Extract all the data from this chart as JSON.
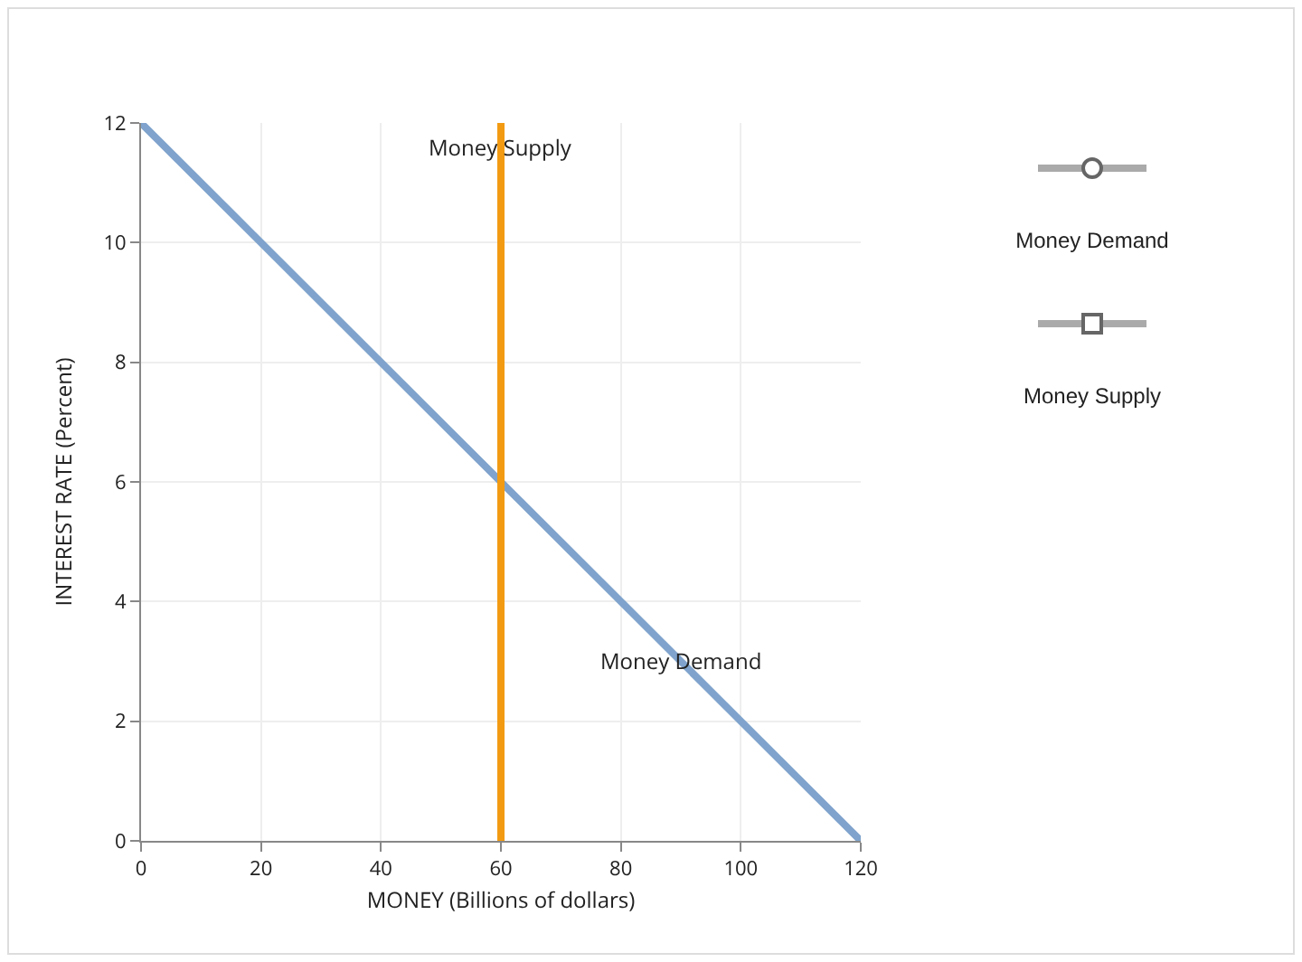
{
  "chart_data": {
    "type": "line",
    "xlabel": "MONEY (Billions of dollars)",
    "ylabel": "INTEREST RATE (Percent)",
    "series": [
      {
        "color": "#7fa3cc",
        "x": [
          0,
          120
        ],
        "values": [
          12,
          0
        ]
      },
      {
        "color": "#f29b12",
        "x": [
          60,
          60
        ],
        "values": [
          0,
          12
        ]
      }
    ],
    "annotations": [
      {
        "text": "Money Supply",
        "x": 60,
        "y": 11.6
      },
      {
        "text": "Money Demand",
        "x": 90,
        "y": 3
      },
      "Money Demand",
      "Money Supply"
    ],
    "xlim": [
      0,
      120
    ],
    "xticks": [
      0,
      20,
      40,
      60,
      80,
      100,
      120
    ],
    "ylim": [
      0,
      12
    ],
    "yticks": [
      0,
      2,
      4,
      6,
      8,
      10,
      12
    ],
    "grid": true
  }
}
